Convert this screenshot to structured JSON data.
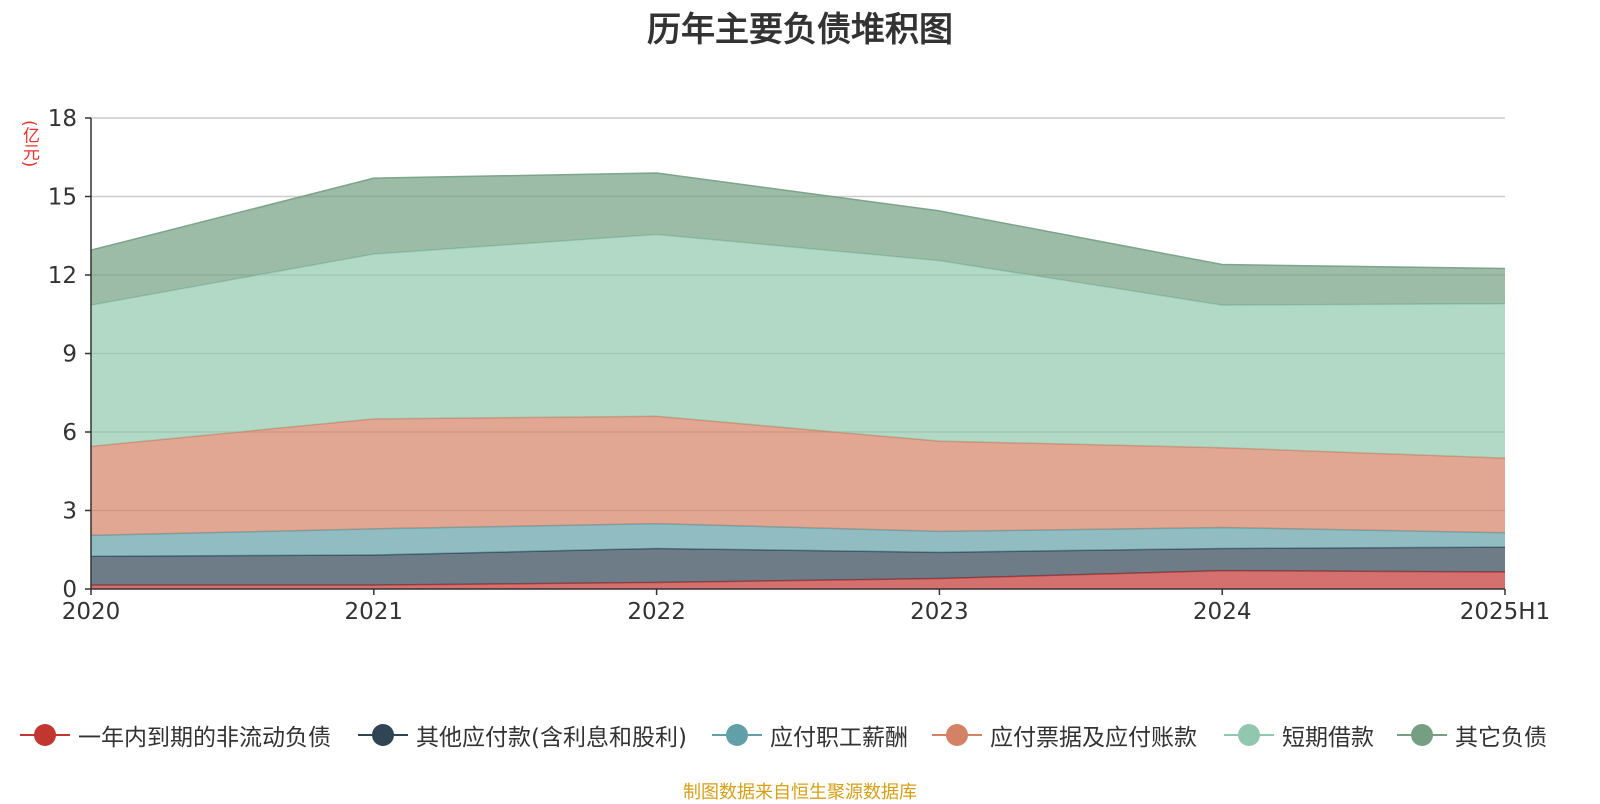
{
  "chart_data": {
    "type": "area",
    "stacked": true,
    "title": "历年主要负债堆积图",
    "ylabel": "(亿元)",
    "xlabel": "",
    "categories": [
      "2020",
      "2021",
      "2022",
      "2023",
      "2024",
      "2025H1"
    ],
    "ylim": [
      0,
      18
    ],
    "yticks": [
      0,
      3,
      6,
      9,
      12,
      15,
      18
    ],
    "grid": true,
    "legend_position": "bottom",
    "series": [
      {
        "name": "一年内到期的非流动负债",
        "color": "#c23531",
        "values": [
          0.15,
          0.15,
          0.25,
          0.4,
          0.7,
          0.65
        ]
      },
      {
        "name": "其他应付款(含利息和股利)",
        "color": "#2f4554",
        "values": [
          1.1,
          1.15,
          1.3,
          1.0,
          0.85,
          0.95
        ]
      },
      {
        "name": "应付职工薪酬",
        "color": "#61a0a8",
        "values": [
          0.8,
          1.0,
          0.95,
          0.8,
          0.8,
          0.55
        ]
      },
      {
        "name": "应付票据及应付账款",
        "color": "#d48265",
        "values": [
          3.4,
          4.2,
          4.1,
          3.45,
          3.05,
          2.85
        ]
      },
      {
        "name": "短期借款",
        "color": "#91c7ae",
        "values": [
          5.4,
          6.3,
          6.95,
          6.9,
          5.45,
          5.9
        ]
      },
      {
        "name": "其它负债",
        "color": "#749f83",
        "values": [
          2.1,
          2.9,
          2.35,
          1.9,
          1.55,
          1.35
        ]
      }
    ]
  },
  "source_note": "制图数据来自恒生聚源数据库"
}
